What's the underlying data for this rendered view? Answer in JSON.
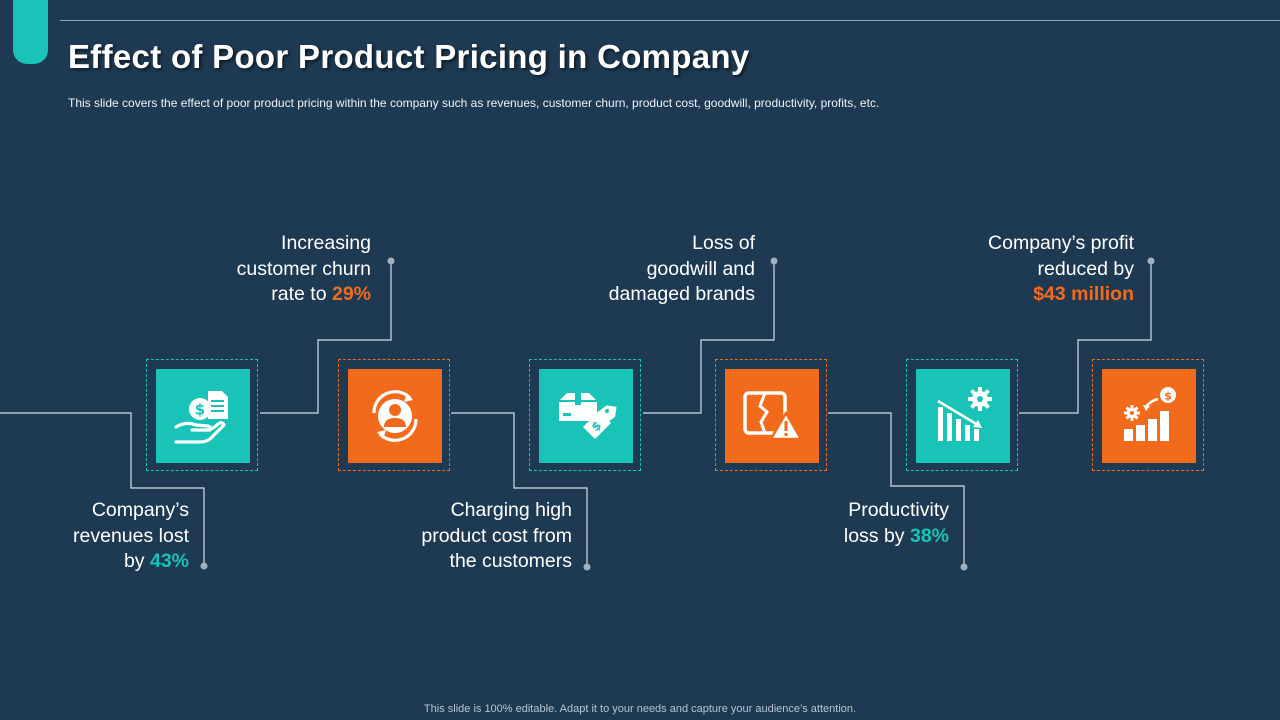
{
  "slide": {
    "title": "Effect of Poor Product Pricing in Company",
    "subtitle": "This slide covers the effect of poor product pricing within the company  such as revenues, customer churn, product cost, goodwill, productivity,  profits, etc.",
    "footer": "This slide is 100% editable. Adapt it to your needs and capture your audience’s attention."
  },
  "colors": {
    "background": "#1e3a52",
    "teal": "#19c3b7",
    "orange": "#f26b1d",
    "connector": "#d6dde4"
  },
  "items": [
    {
      "icon": "money-hand-icon",
      "color": "teal",
      "lines": [
        "Company’s",
        "revenues lost"
      ],
      "last_prefix": "by ",
      "highlight": "43%"
    },
    {
      "icon": "customer-churn-icon",
      "color": "orange",
      "lines": [
        "Increasing",
        "customer churn"
      ],
      "last_prefix": "rate to ",
      "highlight": "29%"
    },
    {
      "icon": "package-price-tag-icon",
      "color": "teal",
      "lines": [
        "Charging high",
        "product cost from",
        "the customers"
      ]
    },
    {
      "icon": "broken-brand-warning-icon",
      "color": "orange",
      "lines": [
        "Loss of",
        "goodwill and",
        "damaged brands"
      ]
    },
    {
      "icon": "declining-chart-gear-icon",
      "color": "teal",
      "lines": [
        "Productivity"
      ],
      "last_prefix": "loss by ",
      "highlight": "38%"
    },
    {
      "icon": "profit-growth-icon",
      "color": "orange",
      "lines": [
        "Company’s profit",
        "reduced by"
      ],
      "highlight": "$43 million"
    }
  ]
}
